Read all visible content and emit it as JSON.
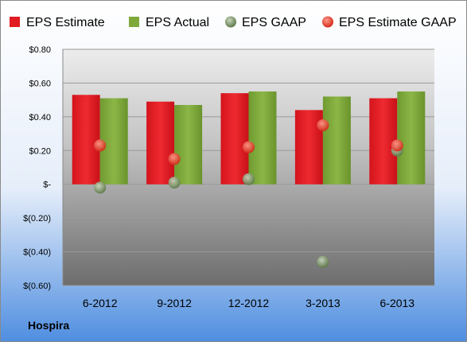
{
  "company": "Hospira",
  "chart_data": {
    "type": "bar",
    "categories": [
      "6-2012",
      "9-2012",
      "12-2012",
      "3-2013",
      "6-2013"
    ],
    "series": [
      {
        "name": "EPS Estimate",
        "kind": "bar",
        "color": "#e21b23",
        "values": [
          0.53,
          0.49,
          0.54,
          0.44,
          0.51
        ]
      },
      {
        "name": "EPS Actual",
        "kind": "bar",
        "color": "#7ea83a",
        "values": [
          0.51,
          0.47,
          0.55,
          0.52,
          0.55
        ]
      },
      {
        "name": "EPS GAAP",
        "kind": "marker",
        "color": "#6e8a58",
        "values": [
          -0.02,
          0.01,
          0.03,
          -0.46,
          0.2
        ]
      },
      {
        "name": "EPS Estimate GAAP",
        "kind": "marker",
        "color": "#e03a2a",
        "values": [
          0.23,
          0.15,
          0.22,
          0.35,
          0.23
        ]
      }
    ],
    "ylim": [
      -0.6,
      0.8
    ],
    "yticks": [
      0.8,
      0.6,
      0.4,
      0.2,
      0,
      -0.2,
      -0.4,
      -0.6
    ],
    "ytick_labels": [
      "$0.80",
      "$0.60",
      "$0.40",
      "$0.20",
      "$-",
      "$(0.20)",
      "$(0.40)",
      "$(0.60)"
    ],
    "grid": true,
    "legend_position": "top"
  }
}
